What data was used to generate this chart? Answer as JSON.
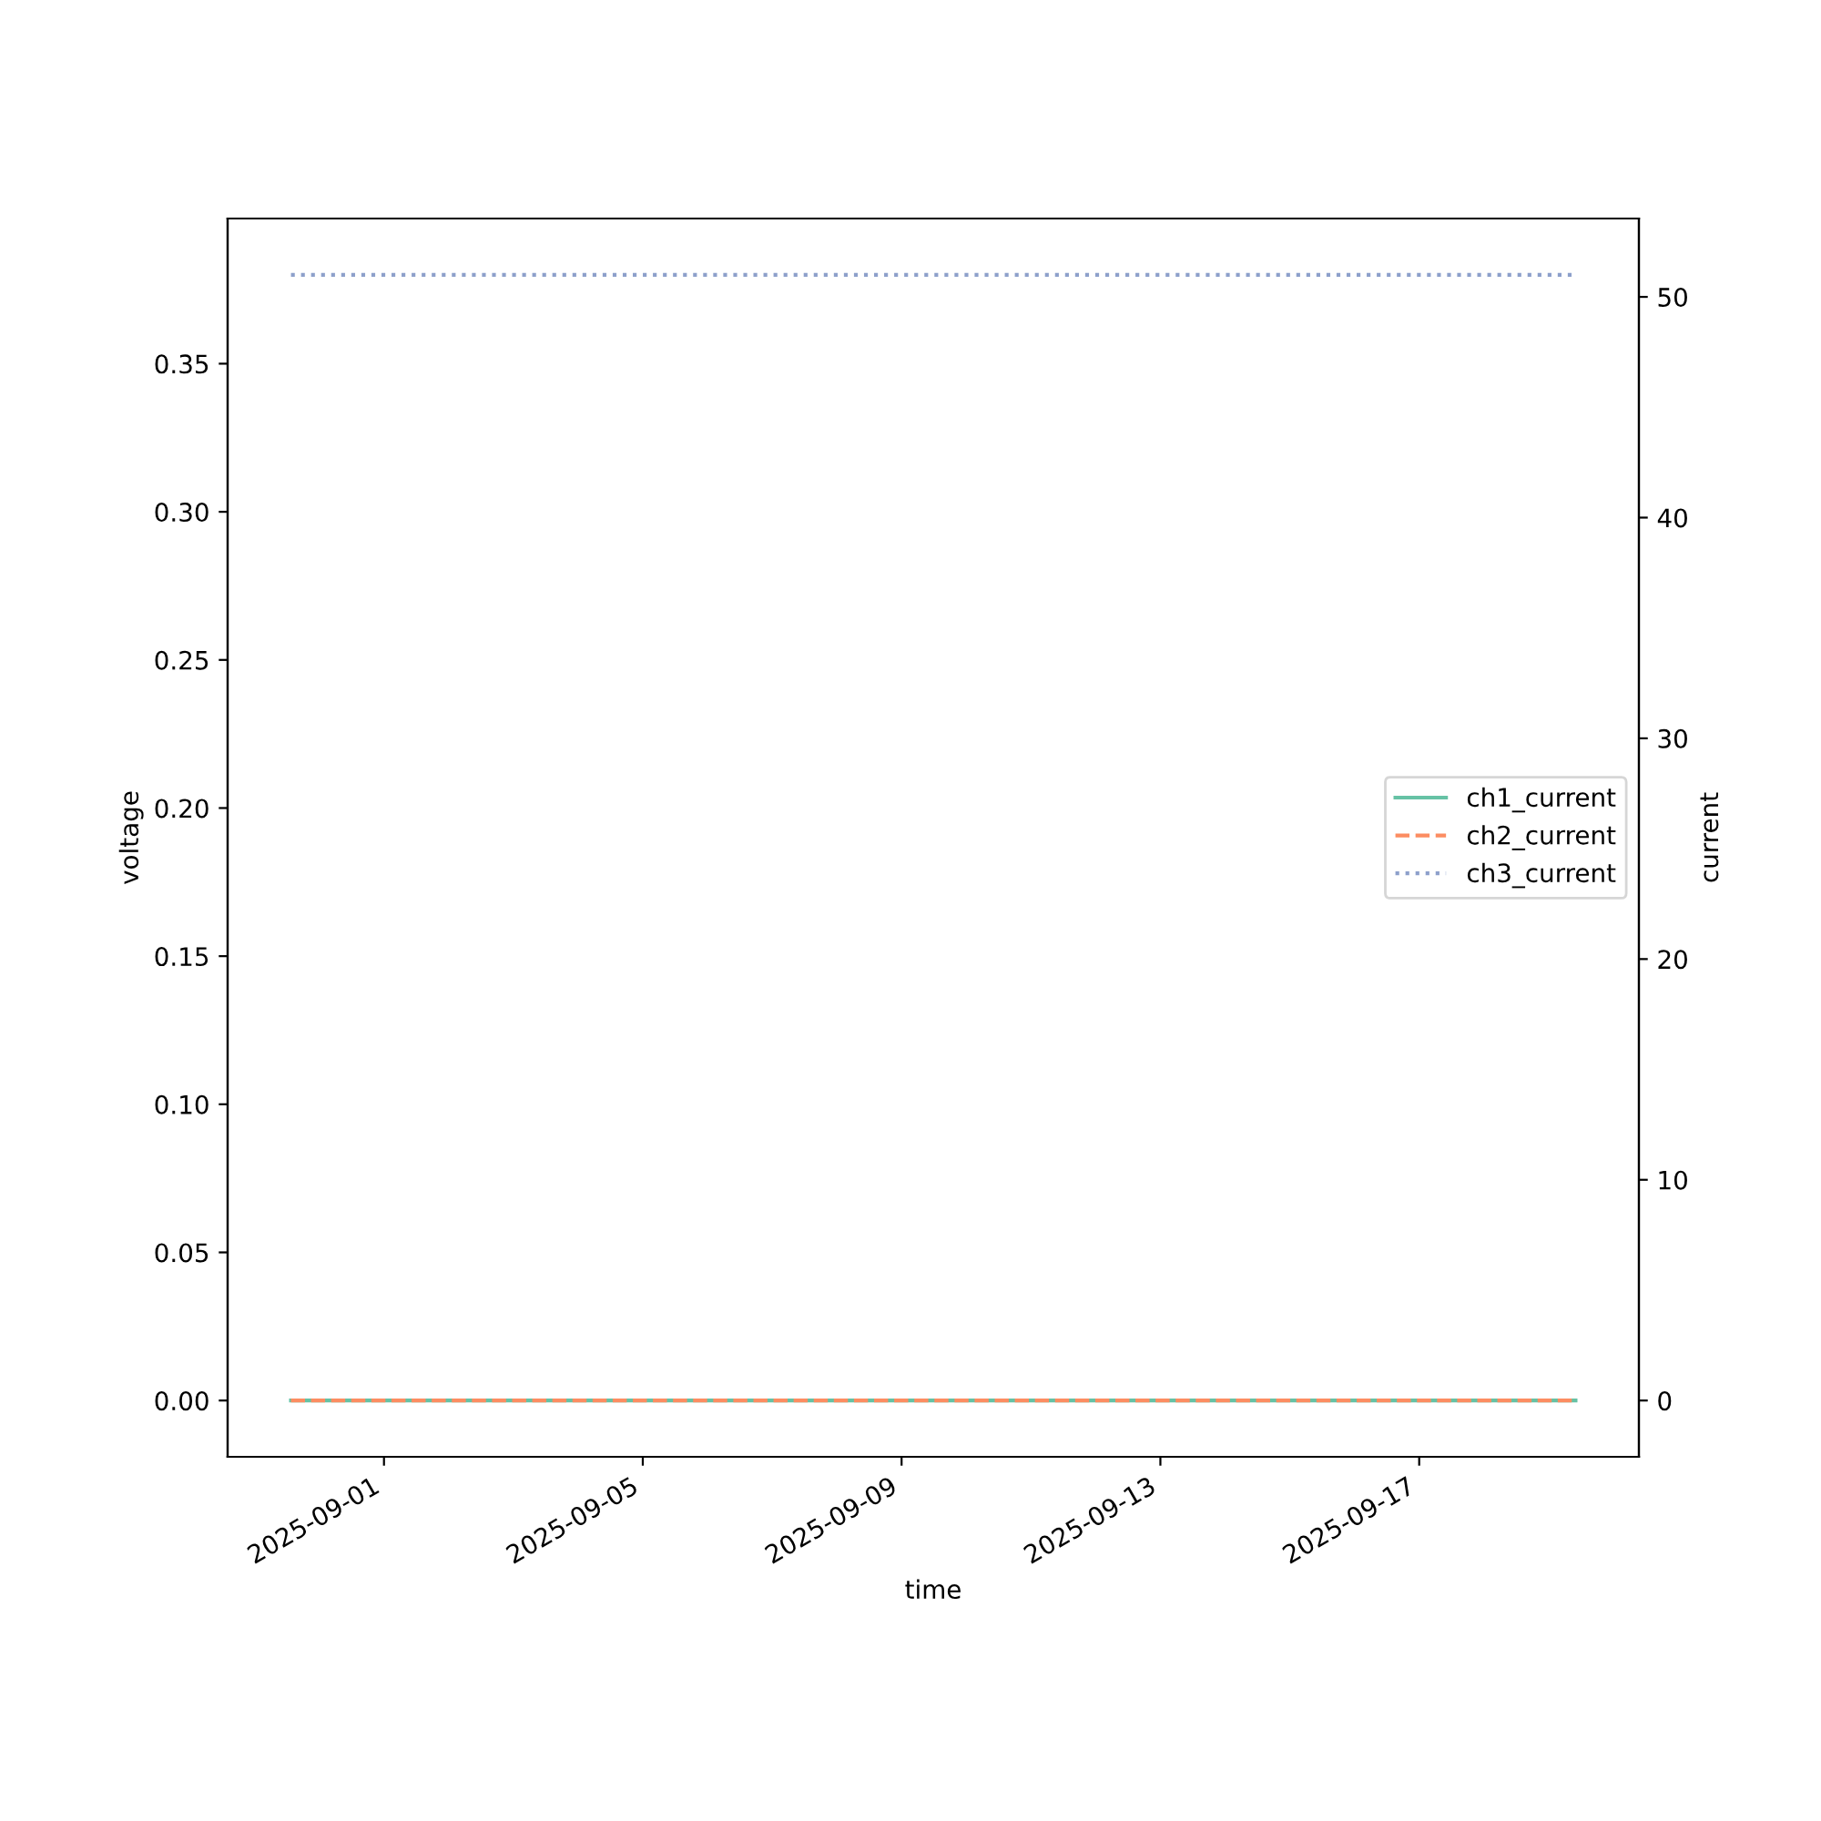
{
  "chart_data": {
    "type": "line",
    "xlabel": "time",
    "ylabel": "voltage",
    "y2label": "current",
    "x": [
      "2025-08-30T13:30",
      "2025-09-19T10:00"
    ],
    "series": [
      {
        "name": "ch1_current",
        "color": "#66c2a5",
        "values": [
          0,
          0
        ],
        "axis": "y2",
        "line_style": "solid"
      },
      {
        "name": "ch2_current",
        "color": "#fc8d62",
        "values": [
          0,
          0
        ],
        "axis": "y2",
        "line_style": "dashed"
      },
      {
        "name": "ch3_current",
        "color": "#8da0cb",
        "values": [
          51,
          51
        ],
        "axis": "y2",
        "line_style": "dotted"
      }
    ],
    "xlim": [
      "2025-08-29T14:00",
      "2025-09-20T09:30"
    ],
    "xticks": [
      {
        "value": "2025-09-01",
        "label": "2025-09-01"
      },
      {
        "value": "2025-09-05",
        "label": "2025-09-05"
      },
      {
        "value": "2025-09-09",
        "label": "2025-09-09"
      },
      {
        "value": "2025-09-13",
        "label": "2025-09-13"
      },
      {
        "value": "2025-09-17",
        "label": "2025-09-17"
      }
    ],
    "ylim": [
      -0.019,
      0.399
    ],
    "yticks": [
      {
        "value": 0,
        "label": "0.00"
      },
      {
        "value": 0.05,
        "label": "0.05"
      },
      {
        "value": 0.1,
        "label": "0.10"
      },
      {
        "value": 0.15,
        "label": "0.15"
      },
      {
        "value": 0.2,
        "label": "0.20"
      },
      {
        "value": 0.25,
        "label": "0.25"
      },
      {
        "value": 0.3,
        "label": "0.30"
      },
      {
        "value": 0.35,
        "label": "0.35"
      }
    ],
    "y2lim": [
      -2.55,
      53.55
    ],
    "y2ticks": [
      0,
      10,
      20,
      30,
      40,
      50
    ],
    "legend": "right",
    "grid": false
  }
}
